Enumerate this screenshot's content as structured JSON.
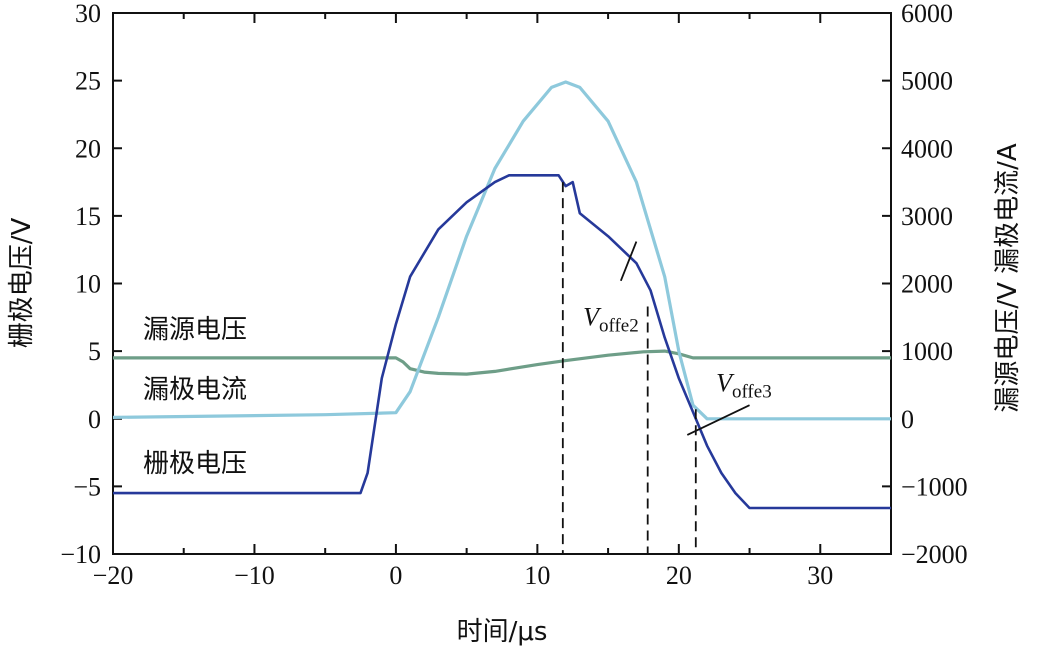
{
  "chart_data": {
    "type": "line",
    "xlabel": "时间/μs",
    "ylabel_left": "栅极电压/V",
    "ylabel_right": "漏源电压/V  漏极电流/A",
    "xlim": [
      -20,
      35
    ],
    "ylim_left": [
      -10,
      30
    ],
    "ylim_right": [
      -2000,
      6000
    ],
    "xticks": [
      "−20",
      "−10",
      "0",
      "10",
      "20",
      "30"
    ],
    "xtick_values": [
      -20,
      -10,
      0,
      10,
      20,
      30
    ],
    "yticks_left": [
      "−10",
      "−5",
      "0",
      "5",
      "10",
      "15",
      "20",
      "25",
      "30"
    ],
    "ytick_values_left": [
      -10,
      -5,
      0,
      5,
      10,
      15,
      20,
      25,
      30
    ],
    "yticks_right": [
      "−2000",
      "−1000",
      "0",
      "1000",
      "2000",
      "3000",
      "4000",
      "5000",
      "6000"
    ],
    "ytick_values_right": [
      -2000,
      -1000,
      0,
      1000,
      2000,
      3000,
      4000,
      5000,
      6000
    ],
    "legend": [
      "漏源电压",
      "漏极电流",
      "栅极电压"
    ],
    "series": [
      {
        "name": "漏源电压",
        "axis": "right",
        "color": "#6e9e88",
        "x": [
          -20,
          0,
          0.5,
          1,
          2,
          3,
          5,
          7,
          10,
          12,
          15,
          17.5,
          19,
          20,
          21,
          25,
          35
        ],
        "y": [
          900,
          900,
          840,
          740,
          690,
          670,
          660,
          700,
          800,
          860,
          940,
          990,
          1000,
          960,
          900,
          900,
          900
        ]
      },
      {
        "name": "漏极电流",
        "axis": "right",
        "color": "#8ec9dc",
        "x": [
          -20,
          -5,
          0,
          1,
          3,
          5,
          7,
          9,
          11,
          12,
          13,
          15,
          17,
          19,
          20,
          21,
          22,
          35
        ],
        "y": [
          20,
          60,
          90,
          400,
          1500,
          2700,
          3700,
          4400,
          4900,
          4980,
          4900,
          4400,
          3500,
          2100,
          1000,
          200,
          0,
          0
        ]
      },
      {
        "name": "栅极电压",
        "axis": "left",
        "color": "#26399a",
        "x": [
          -20,
          -2.5,
          -2,
          -1,
          0,
          1,
          3,
          5,
          7,
          8,
          11.5,
          12,
          12.5,
          13,
          15,
          17,
          18,
          19,
          20,
          21,
          22,
          23,
          24,
          25,
          35
        ],
        "y": [
          -5.5,
          -5.5,
          -4,
          3,
          7,
          10.5,
          14,
          16,
          17.5,
          18,
          18,
          17.2,
          17.5,
          15.2,
          13.5,
          11.5,
          9.5,
          6,
          3,
          0.5,
          -2,
          -4,
          -5.5,
          -6.6,
          -6.6
        ]
      }
    ],
    "annotations": [
      {
        "label": "V",
        "sub": "offe2",
        "x": 11.8,
        "text_x": 15.2,
        "text_y": 6.9
      },
      {
        "label": "V",
        "sub": "offe3",
        "x": 21.3,
        "text_x": 24.6,
        "text_y": 2.0
      }
    ],
    "markers": [
      {
        "x": 11.8,
        "series": "栅极电压",
        "y": 17.5
      },
      {
        "x": 17.8,
        "series": "栅极电压",
        "y": 8.3
      },
      {
        "x": 21.2,
        "series": "栅极电压",
        "y": 0.7
      }
    ],
    "grid": false
  }
}
